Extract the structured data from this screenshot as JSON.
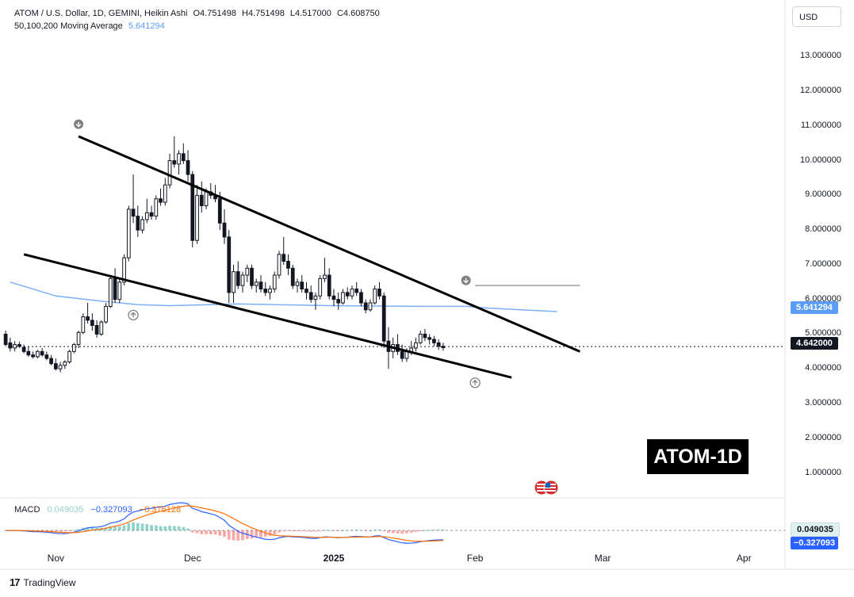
{
  "header": {
    "symbol": "ATOM / U.S. Dollar, 1D, GEMINI, Heikin Ashi",
    "open": "O4.751498",
    "high": "H4.751498",
    "low": "L4.517000",
    "close": "C4.608750",
    "ma_label": "50,100,200 Moving Average",
    "ma_value": "5.641294"
  },
  "currency_button": "USD",
  "price_tag": "4.642000",
  "ma_tag": "5.641294",
  "macd_header": {
    "label": "MACD",
    "histogram": "0.049035",
    "macd": "−0.327093",
    "signal": "−0.376128"
  },
  "macd_tags": {
    "histogram": "0.049035",
    "macd": "−0.327093"
  },
  "watermark": "ATOM-1D",
  "branding": "TradingView",
  "colors": {
    "up": "#131722",
    "down": "#131722",
    "ma": "#5b9cf6",
    "macd": "#2962ff",
    "signal": "#ff6d00",
    "hist_pos": "#26a69a",
    "hist_neg": "#ef5350",
    "trendline": "#000000",
    "resistance": "#9e9e9e"
  },
  "chart_data": {
    "type": "candlestick",
    "y_ticks": [
      "13.000000",
      "12.000000",
      "11.000000",
      "10.000000",
      "9.000000",
      "8.000000",
      "7.000000",
      "6.000000",
      "5.000000",
      "4.000000",
      "3.000000",
      "2.000000",
      "1.000000"
    ],
    "x_ticks": [
      {
        "label": "Nov",
        "day": 0,
        "bold": false
      },
      {
        "label": "Dec",
        "day": 30,
        "bold": false
      },
      {
        "label": "2025",
        "day": 61,
        "bold": true
      },
      {
        "label": "Feb",
        "day": 92,
        "bold": false
      },
      {
        "label": "Mar",
        "day": 120,
        "bold": false
      },
      {
        "label": "Apr",
        "day": 151,
        "bold": false
      }
    ],
    "ylim": [
      0.35,
      13.6
    ],
    "xlim": [
      -10.5,
      160
    ],
    "current_price": 4.642,
    "ma_line": [
      [
        -10,
        6.5
      ],
      [
        0,
        6.1
      ],
      [
        10,
        5.95
      ],
      [
        18,
        5.85
      ],
      [
        25,
        5.82
      ],
      [
        40,
        5.87
      ],
      [
        60,
        5.82
      ],
      [
        80,
        5.8
      ],
      [
        90,
        5.8
      ],
      [
        95,
        5.75
      ],
      [
        110,
        5.65
      ]
    ],
    "trendlines": [
      {
        "points": [
          [
            5,
            10.7
          ],
          [
            115,
            4.5
          ]
        ]
      },
      {
        "points": [
          [
            -7,
            7.3
          ],
          [
            100,
            3.75
          ]
        ]
      }
    ],
    "resistance": {
      "y": 6.4,
      "x1": 92,
      "x2": 115
    },
    "markers": [
      {
        "day": 5,
        "price": 11.05,
        "dir": "down"
      },
      {
        "day": 90,
        "price": 6.55,
        "dir": "down"
      },
      {
        "day": 17,
        "price": 5.55,
        "dir": "up"
      },
      {
        "day": 92,
        "price": 3.6,
        "dir": "up"
      }
    ],
    "candles": [
      [
        -11,
        5.0,
        5.1,
        4.65,
        4.7
      ],
      [
        -10,
        4.75,
        4.9,
        4.5,
        4.6
      ],
      [
        -9,
        4.6,
        4.8,
        4.5,
        4.7
      ],
      [
        -8,
        4.7,
        4.78,
        4.6,
        4.65
      ],
      [
        -7,
        4.62,
        4.7,
        4.45,
        4.5
      ],
      [
        -6,
        4.5,
        4.65,
        4.35,
        4.4
      ],
      [
        -5,
        4.4,
        4.5,
        4.3,
        4.35
      ],
      [
        -4,
        4.35,
        4.55,
        4.3,
        4.5
      ],
      [
        -3,
        4.5,
        4.6,
        4.35,
        4.4
      ],
      [
        -2,
        4.4,
        4.5,
        4.25,
        4.3
      ],
      [
        -1,
        4.3,
        4.4,
        4.1,
        4.15
      ],
      [
        0,
        4.15,
        4.3,
        3.95,
        4.0
      ],
      [
        1,
        4.0,
        4.2,
        3.9,
        4.1
      ],
      [
        2,
        4.1,
        4.25,
        4.0,
        4.2
      ],
      [
        3,
        4.2,
        4.55,
        4.15,
        4.5
      ],
      [
        4,
        4.5,
        4.75,
        4.45,
        4.7
      ],
      [
        5,
        4.7,
        5.1,
        4.6,
        5.05
      ],
      [
        6,
        5.05,
        5.6,
        5.0,
        5.5
      ],
      [
        7,
        5.5,
        5.9,
        5.3,
        5.4
      ],
      [
        8,
        5.4,
        5.6,
        5.1,
        5.25
      ],
      [
        9,
        5.25,
        5.4,
        4.9,
        5.0
      ],
      [
        10,
        5.0,
        5.4,
        4.95,
        5.35
      ],
      [
        11,
        5.35,
        5.9,
        5.3,
        5.8
      ],
      [
        12,
        5.8,
        6.7,
        5.75,
        6.6
      ],
      [
        13,
        6.6,
        6.9,
        5.9,
        6.0
      ],
      [
        14,
        6.0,
        6.6,
        5.9,
        6.5
      ],
      [
        15,
        6.5,
        7.3,
        6.4,
        7.2
      ],
      [
        16,
        7.2,
        8.7,
        7.1,
        8.6
      ],
      [
        17,
        8.6,
        9.6,
        8.2,
        8.4
      ],
      [
        18,
        8.4,
        8.7,
        7.8,
        8.0
      ],
      [
        19,
        8.0,
        8.4,
        7.9,
        8.3
      ],
      [
        20,
        8.3,
        8.9,
        8.2,
        8.5
      ],
      [
        21,
        8.5,
        8.7,
        8.3,
        8.4
      ],
      [
        22,
        8.4,
        9.0,
        8.3,
        8.9
      ],
      [
        23,
        8.9,
        9.2,
        8.7,
        8.8
      ],
      [
        24,
        8.8,
        9.5,
        8.7,
        9.3
      ],
      [
        25,
        9.3,
        10.2,
        9.2,
        10.0
      ],
      [
        26,
        10.0,
        10.7,
        9.8,
        9.9
      ],
      [
        27,
        9.9,
        10.3,
        9.6,
        10.2
      ],
      [
        28,
        10.2,
        10.5,
        9.9,
        10.0
      ],
      [
        29,
        10.0,
        10.3,
        9.4,
        9.6
      ],
      [
        30,
        9.6,
        9.7,
        7.5,
        7.7
      ],
      [
        31,
        7.7,
        9.3,
        7.6,
        9.0
      ],
      [
        32,
        9.0,
        9.4,
        8.5,
        8.7
      ],
      [
        33,
        8.7,
        9.2,
        8.6,
        9.1
      ],
      [
        34,
        9.1,
        9.35,
        8.9,
        9.0
      ],
      [
        35,
        9.0,
        9.3,
        8.8,
        8.9
      ],
      [
        36,
        8.9,
        9.1,
        8.0,
        8.2
      ],
      [
        37,
        8.2,
        8.6,
        7.6,
        7.8
      ],
      [
        38,
        7.8,
        8.0,
        5.9,
        6.2
      ],
      [
        39,
        6.2,
        7.0,
        5.9,
        6.8
      ],
      [
        40,
        6.8,
        7.1,
        6.3,
        6.4
      ],
      [
        41,
        6.4,
        6.8,
        6.2,
        6.7
      ],
      [
        42,
        6.7,
        7.0,
        6.5,
        6.9
      ],
      [
        43,
        6.9,
        7.0,
        6.3,
        6.4
      ],
      [
        44,
        6.4,
        6.6,
        6.2,
        6.5
      ],
      [
        45,
        6.5,
        6.7,
        6.2,
        6.3
      ],
      [
        46,
        6.3,
        6.5,
        6.1,
        6.2
      ],
      [
        47,
        6.2,
        6.4,
        6.0,
        6.3
      ],
      [
        48,
        6.3,
        6.8,
        6.2,
        6.7
      ],
      [
        49,
        6.7,
        7.4,
        6.6,
        7.3
      ],
      [
        50,
        7.3,
        7.8,
        7.0,
        7.1
      ],
      [
        51,
        7.1,
        7.3,
        6.7,
        6.9
      ],
      [
        52,
        6.9,
        7.0,
        6.3,
        6.4
      ],
      [
        53,
        6.4,
        6.6,
        6.2,
        6.5
      ],
      [
        54,
        6.5,
        6.7,
        6.2,
        6.3
      ],
      [
        55,
        6.3,
        6.5,
        6.0,
        6.2
      ],
      [
        56,
        6.2,
        6.4,
        5.9,
        6.0
      ],
      [
        57,
        6.0,
        6.2,
        5.7,
        6.1
      ],
      [
        58,
        6.1,
        6.7,
        6.0,
        6.6
      ],
      [
        59,
        6.6,
        7.2,
        6.5,
        6.7
      ],
      [
        60,
        6.7,
        6.9,
        6.0,
        6.1
      ],
      [
        61,
        6.1,
        6.3,
        5.8,
        6.0
      ],
      [
        62,
        6.0,
        6.2,
        5.7,
        5.9
      ],
      [
        63,
        5.9,
        6.3,
        5.85,
        6.2
      ],
      [
        64,
        6.2,
        6.35,
        6.0,
        6.1
      ],
      [
        65,
        6.1,
        6.4,
        6.0,
        6.3
      ],
      [
        66,
        6.3,
        6.5,
        6.1,
        6.2
      ],
      [
        67,
        6.2,
        6.3,
        5.8,
        5.9
      ],
      [
        68,
        5.9,
        6.0,
        5.6,
        5.7
      ],
      [
        69,
        5.7,
        6.0,
        5.65,
        5.9
      ],
      [
        70,
        5.9,
        6.4,
        5.85,
        6.3
      ],
      [
        71,
        6.3,
        6.5,
        6.0,
        6.1
      ],
      [
        72,
        6.1,
        6.2,
        4.6,
        4.8
      ],
      [
        73,
        4.8,
        5.2,
        4.0,
        4.5
      ],
      [
        74,
        4.5,
        4.9,
        4.3,
        4.7
      ],
      [
        75,
        4.7,
        5.0,
        4.4,
        4.5
      ],
      [
        76,
        4.5,
        4.7,
        4.2,
        4.3
      ],
      [
        77,
        4.3,
        4.6,
        4.2,
        4.5
      ],
      [
        78,
        4.5,
        4.8,
        4.4,
        4.6
      ],
      [
        79,
        4.6,
        4.9,
        4.5,
        4.75
      ],
      [
        80,
        4.75,
        5.1,
        4.7,
        5.0
      ],
      [
        81,
        5.0,
        5.15,
        4.8,
        4.9
      ],
      [
        82,
        4.9,
        5.0,
        4.7,
        4.85
      ],
      [
        83,
        4.85,
        4.95,
        4.65,
        4.75
      ],
      [
        84,
        4.75,
        4.85,
        4.55,
        4.65
      ],
      [
        85,
        4.65,
        4.75,
        4.52,
        4.61
      ]
    ],
    "macd": {
      "label": "MACD",
      "histogram_value": 0.049035,
      "macd_value": -0.327093,
      "signal_value": -0.376128
    }
  }
}
